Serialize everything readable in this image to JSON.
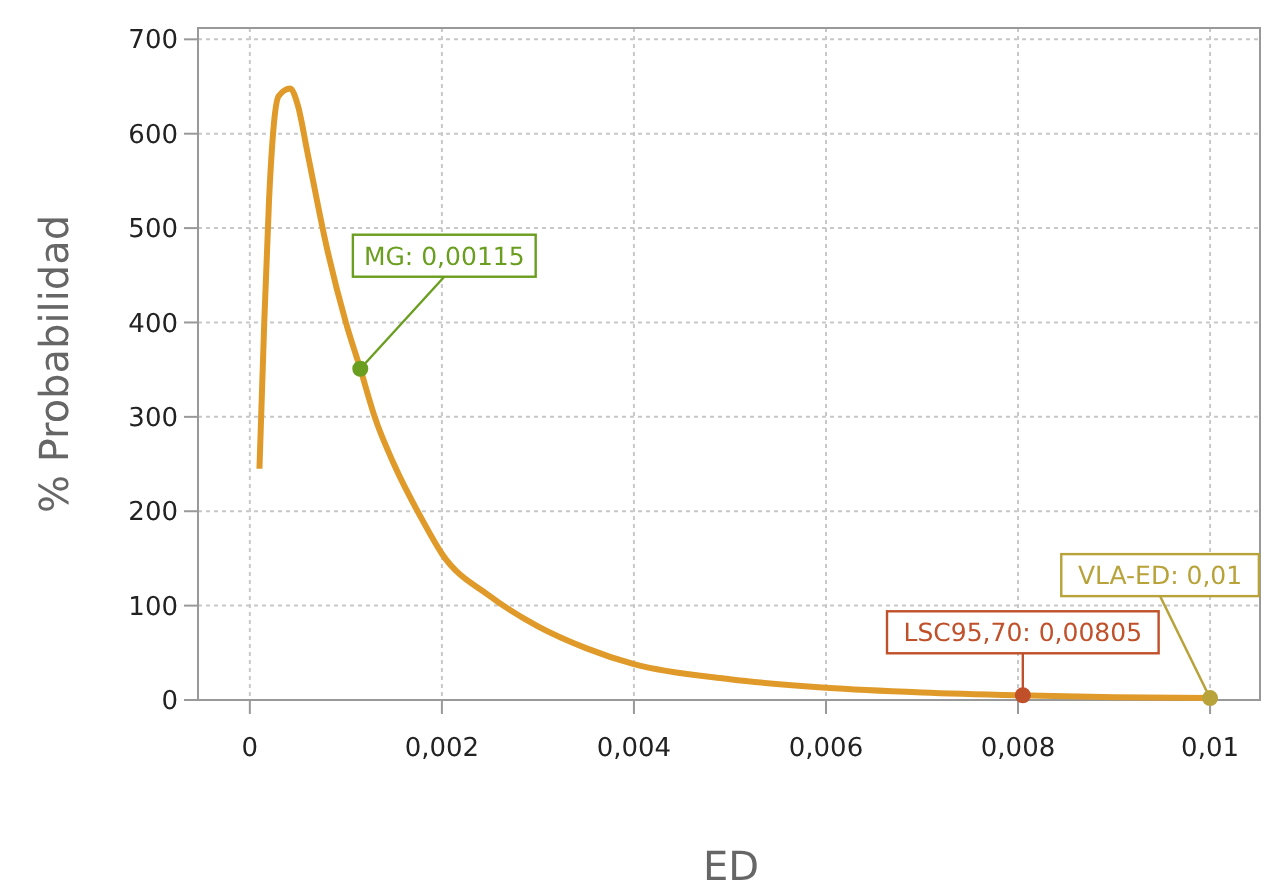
{
  "chart_data": {
    "type": "line",
    "xlabel": "ED",
    "ylabel": "% Probabilidad",
    "xlim": [
      -0.00054,
      0.01052
    ],
    "ylim": [
      0,
      712
    ],
    "xticks": [
      0,
      {
        "value": 0.002,
        "label": "0,002"
      },
      {
        "value": 0.004,
        "label": "0,004"
      },
      {
        "value": 0.006,
        "label": "0,006"
      },
      {
        "value": 0.008,
        "label": "0,008"
      },
      {
        "value": 0.01,
        "label": "0,01"
      }
    ],
    "yticks": [
      0,
      100,
      200,
      300,
      400,
      500,
      600,
      700
    ],
    "grid": true,
    "series": [
      {
        "color": "#e09a2a",
        "marker": "none",
        "line_style": "solid",
        "x": [
          0.0001,
          0.00015,
          0.0002,
          0.00025,
          0.0003,
          0.00042,
          0.0005,
          0.0006,
          0.0008,
          0.001,
          0.00115,
          0.0013,
          0.0015,
          0.0018,
          0.002,
          0.0025,
          0.003,
          0.0035,
          0.004,
          0.005,
          0.006,
          0.007,
          0.008,
          0.009,
          0.01
        ],
        "values": [
          245,
          400,
          530,
          610,
          640,
          648,
          630,
          580,
          480,
          400,
          351,
          300,
          250,
          190,
          155,
          110,
          78,
          55,
          38,
          22,
          13,
          8,
          5,
          3,
          2
        ]
      },
      {
        "type": "scatter",
        "marker": "circle",
        "x": [
          0.00115,
          0.00805,
          0.01
        ],
        "values": [
          351,
          5,
          2
        ],
        "colors": [
          "#6a9e1f",
          "#c0502a",
          "#b8a23a"
        ]
      }
    ],
    "annotations": [
      {
        "text": "MG: 0,00115",
        "x": 0.00115,
        "y": 351
      },
      {
        "text": "LSC95,70: 0,00805",
        "x": 0.00805,
        "y": 5
      },
      {
        "text": "VLA-ED: 0,01",
        "x": 0.01,
        "y": 2
      }
    ]
  }
}
